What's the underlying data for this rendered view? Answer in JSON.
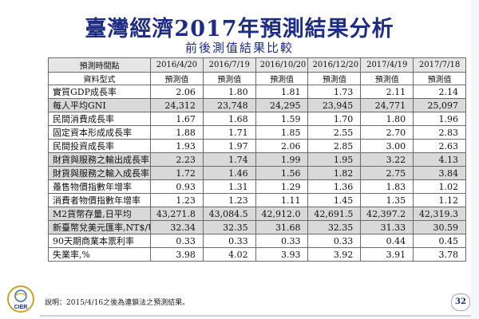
{
  "slide": {
    "title": "臺灣經濟2017年預測結果分析",
    "subtitle": "前後測值結果比較",
    "footnote": "說明：2015/4/16之後為連鎖法之預測結果。",
    "page_number": "32",
    "logo_text": "CIER"
  },
  "table": {
    "header": [
      "預測時間點",
      "2016/4/20",
      "2016/7/19",
      "2016/10/20",
      "2016/12/20",
      "2017/4/19",
      "2017/7/18"
    ],
    "subheader": [
      "資料型式",
      "預測值",
      "預測值",
      "預測值",
      "預測值",
      "預測值",
      "預測值"
    ],
    "rows": [
      {
        "label": "實質GDP成長率",
        "values": [
          "2.06",
          "1.80",
          "1.81",
          "1.73",
          "2.11",
          "2.14"
        ],
        "shaded": false
      },
      {
        "label": "每人平均GNI",
        "values": [
          "24,312",
          "23,748",
          "24,295",
          "23,945",
          "24,771",
          "25,097"
        ],
        "shaded": true
      },
      {
        "label": "民間消費成長率",
        "values": [
          "1.67",
          "1.68",
          "1.59",
          "1.70",
          "1.80",
          "1.96"
        ],
        "shaded": false
      },
      {
        "label": "固定資本形成成長率",
        "values": [
          "1.88",
          "1.71",
          "1.85",
          "2.55",
          "2.70",
          "2.83"
        ],
        "shaded": false
      },
      {
        "label": "民間投資成長率",
        "values": [
          "1.93",
          "1.97",
          "2.06",
          "2.85",
          "3.00",
          "2.63"
        ],
        "shaded": false
      },
      {
        "label": "財貨與服務之輸出成長率",
        "values": [
          "2.23",
          "1.74",
          "1.99",
          "1.95",
          "3.22",
          "4.13"
        ],
        "shaded": true
      },
      {
        "label": "財貨與服務之輸入成長率",
        "values": [
          "1.72",
          "1.46",
          "1.56",
          "1.82",
          "2.75",
          "3.84"
        ],
        "shaded": true
      },
      {
        "label": "躉售物價指數年增率",
        "values": [
          "0.93",
          "1.31",
          "1.29",
          "1.36",
          "1.83",
          "1.02"
        ],
        "shaded": false
      },
      {
        "label": "消費者物價指數年增率",
        "values": [
          "1.23",
          "1.23",
          "1.11",
          "1.45",
          "1.35",
          "1.12"
        ],
        "shaded": false
      },
      {
        "label": "M2貨幣存量,日平均",
        "values": [
          "43,271.8",
          "43,084.5",
          "42,912.0",
          "42,691.5",
          "42,397.2",
          "42,319.3"
        ],
        "shaded": true
      },
      {
        "label": "新臺幣兌美元匯率,NT$/US$",
        "values": [
          "32.34",
          "32.35",
          "31.68",
          "32.35",
          "31.33",
          "30.59"
        ],
        "shaded": true
      },
      {
        "label": "90天期商業本票利率",
        "values": [
          "0.33",
          "0.33",
          "0.33",
          "0.33",
          "0.44",
          "0.45"
        ],
        "shaded": false
      },
      {
        "label": "失業率,%",
        "values": [
          "3.98",
          "4.02",
          "3.93",
          "3.92",
          "3.91",
          "3.78"
        ],
        "shaded": false
      }
    ]
  }
}
